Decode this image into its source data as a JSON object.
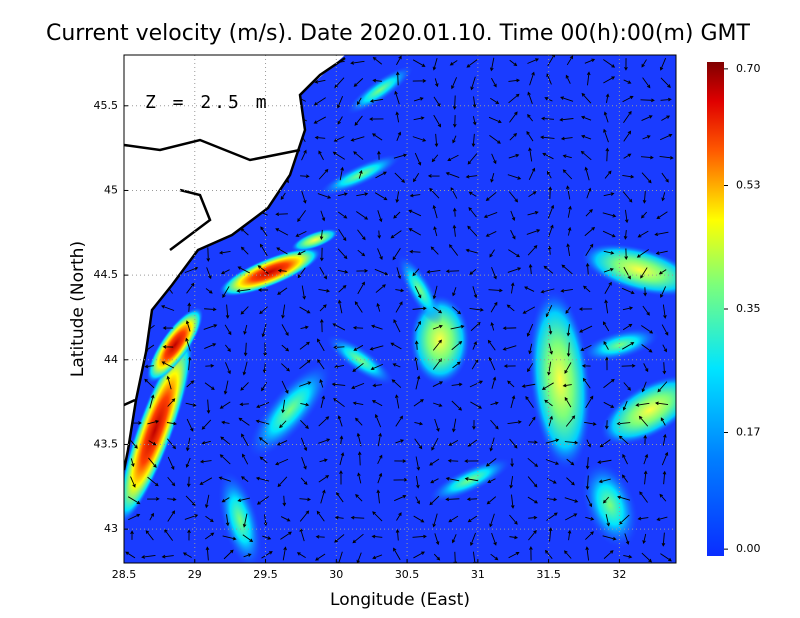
{
  "title": "Current velocity (m/s). Date 2020.01.10. Time 00(h):00(m) GMT",
  "depth_label": "Z = 2.5 m",
  "x_axis": {
    "label": "Longitude (East)",
    "lim": [
      28.5,
      32.4
    ],
    "ticks": [
      28.5,
      29,
      29.5,
      30,
      30.5,
      31,
      31.5,
      32
    ]
  },
  "y_axis": {
    "label": "Latitude (North)",
    "lim": [
      42.8,
      45.8
    ],
    "ticks": [
      43,
      43.5,
      44,
      44.5,
      45,
      45.5
    ]
  },
  "colorbar": {
    "lim": [
      -0.01,
      0.71
    ],
    "ticks": [
      {
        "value": 0,
        "label": "0.00"
      },
      0.17,
      0.35,
      0.53,
      {
        "value": 0.7,
        "label": "0.70"
      }
    ]
  }
}
